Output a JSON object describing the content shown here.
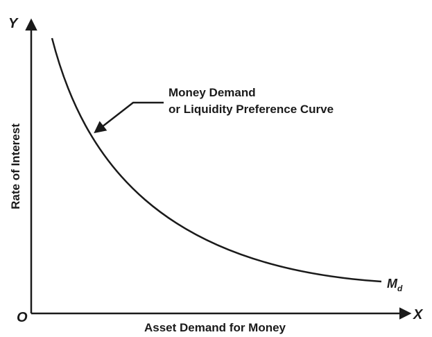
{
  "axes": {
    "y_letter": "Y",
    "x_letter": "X",
    "origin": "O",
    "y_label": "Rate of Interest",
    "x_label": "Asset Demand for Money"
  },
  "annotation": {
    "lines": [
      "Money Demand",
      "or Liquidity Preference Curve"
    ]
  },
  "curve_label": {
    "main": "M",
    "sub": "d"
  }
}
